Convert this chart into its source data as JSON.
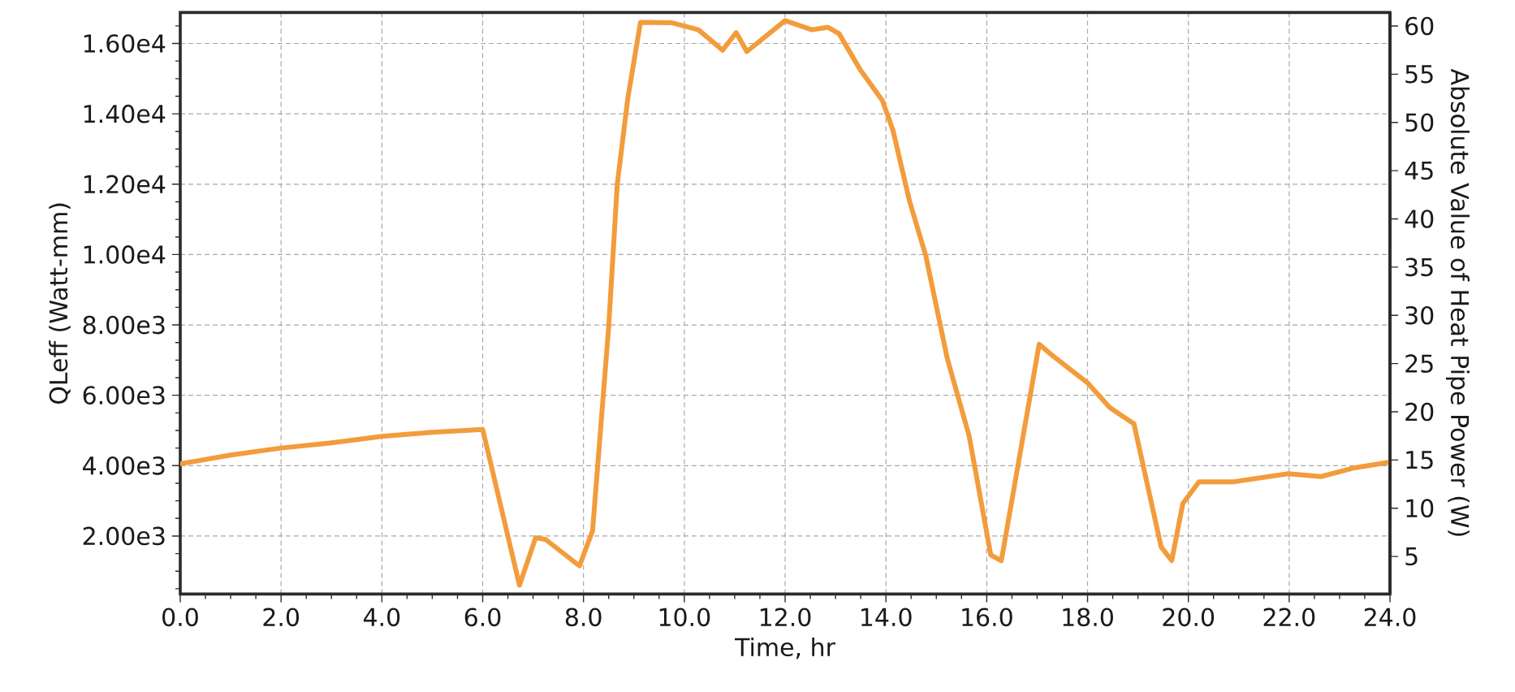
{
  "chart_data": {
    "type": "line",
    "xlabel": "Time, hr",
    "ylabel": "QLeff (Watt-mm)",
    "y2label": "Absolute Value of Heat Pipe Power (W)",
    "x": [
      0,
      1.0,
      2.0,
      3.0,
      4.0,
      5.0,
      6.0,
      6.73,
      7.05,
      7.25,
      7.92,
      8.18,
      8.5,
      8.67,
      8.88,
      9.13,
      9.74,
      10.28,
      10.76,
      11.03,
      11.24,
      12.0,
      12.53,
      12.85,
      13.07,
      13.5,
      13.93,
      14.14,
      14.47,
      14.79,
      15.22,
      15.65,
      16.08,
      16.29,
      17.04,
      17.26,
      18.01,
      18.44,
      18.92,
      19.46,
      19.67,
      19.89,
      20.21,
      20.9,
      21.98,
      22.63,
      23.27,
      24.0
    ],
    "values": [
      4050,
      4300,
      4500,
      4650,
      4830,
      4950,
      5030,
      600,
      1950,
      1900,
      1150,
      2150,
      7950,
      12000,
      14450,
      16600,
      16590,
      16390,
      15810,
      16310,
      15770,
      16650,
      16390,
      16460,
      16280,
      15230,
      14380,
      13530,
      11510,
      9970,
      7030,
      4850,
      1460,
      1300,
      7450,
      7180,
      6340,
      5650,
      5190,
      1690,
      1300,
      2920,
      3540,
      3540,
      3770,
      3690,
      3930,
      4100
    ],
    "color": "#f39c3c",
    "line_style": "solid",
    "grid": true,
    "xlim": [
      0,
      24
    ],
    "ylim": [
      350,
      16880
    ],
    "y2lim": [
      1.1,
      61.4
    ],
    "xticks": [
      {
        "value": 0,
        "label": "0.0"
      },
      {
        "value": 0.5,
        "label": null
      },
      {
        "value": 1,
        "label": null
      },
      {
        "value": 1.5,
        "label": null
      },
      {
        "value": 2,
        "label": "2.0"
      },
      {
        "value": 2.5,
        "label": null
      },
      {
        "value": 3,
        "label": null
      },
      {
        "value": 3.5,
        "label": null
      },
      {
        "value": 4,
        "label": "4.0"
      },
      {
        "value": 4.5,
        "label": null
      },
      {
        "value": 5,
        "label": null
      },
      {
        "value": 5.5,
        "label": null
      },
      {
        "value": 6,
        "label": "6.0"
      },
      {
        "value": 6.5,
        "label": null
      },
      {
        "value": 7,
        "label": null
      },
      {
        "value": 7.5,
        "label": null
      },
      {
        "value": 8,
        "label": "8.0"
      },
      {
        "value": 8.5,
        "label": null
      },
      {
        "value": 9,
        "label": null
      },
      {
        "value": 9.5,
        "label": null
      },
      {
        "value": 10,
        "label": "10.0"
      },
      {
        "value": 10.5,
        "label": null
      },
      {
        "value": 11,
        "label": null
      },
      {
        "value": 11.5,
        "label": null
      },
      {
        "value": 12,
        "label": "12.0"
      },
      {
        "value": 12.5,
        "label": null
      },
      {
        "value": 13,
        "label": null
      },
      {
        "value": 13.5,
        "label": null
      },
      {
        "value": 14,
        "label": "14.0"
      },
      {
        "value": 14.5,
        "label": null
      },
      {
        "value": 15,
        "label": null
      },
      {
        "value": 15.5,
        "label": null
      },
      {
        "value": 16,
        "label": "16.0"
      },
      {
        "value": 16.5,
        "label": null
      },
      {
        "value": 17,
        "label": null
      },
      {
        "value": 17.5,
        "label": null
      },
      {
        "value": 18,
        "label": "18.0"
      },
      {
        "value": 18.5,
        "label": null
      },
      {
        "value": 19,
        "label": null
      },
      {
        "value": 19.5,
        "label": null
      },
      {
        "value": 20,
        "label": "20.0"
      },
      {
        "value": 20.5,
        "label": null
      },
      {
        "value": 21,
        "label": null
      },
      {
        "value": 21.5,
        "label": null
      },
      {
        "value": 22,
        "label": "22.0"
      },
      {
        "value": 22.5,
        "label": null
      },
      {
        "value": 23,
        "label": null
      },
      {
        "value": 23.5,
        "label": null
      },
      {
        "value": 24,
        "label": "24.0"
      }
    ],
    "yticks": [
      {
        "value": 500,
        "label": null
      },
      {
        "value": 1000,
        "label": null
      },
      {
        "value": 1500,
        "label": null
      },
      {
        "value": 2000,
        "label": "2.00e3"
      },
      {
        "value": 2500,
        "label": null
      },
      {
        "value": 3000,
        "label": null
      },
      {
        "value": 3500,
        "label": null
      },
      {
        "value": 4000,
        "label": "4.00e3"
      },
      {
        "value": 4500,
        "label": null
      },
      {
        "value": 5000,
        "label": null
      },
      {
        "value": 5500,
        "label": null
      },
      {
        "value": 6000,
        "label": "6.00e3"
      },
      {
        "value": 6500,
        "label": null
      },
      {
        "value": 7000,
        "label": null
      },
      {
        "value": 7500,
        "label": null
      },
      {
        "value": 8000,
        "label": "8.00e3"
      },
      {
        "value": 8500,
        "label": null
      },
      {
        "value": 9000,
        "label": null
      },
      {
        "value": 9500,
        "label": null
      },
      {
        "value": 10000,
        "label": "1.00e4"
      },
      {
        "value": 10500,
        "label": null
      },
      {
        "value": 11000,
        "label": null
      },
      {
        "value": 11500,
        "label": null
      },
      {
        "value": 12000,
        "label": "1.20e4"
      },
      {
        "value": 12500,
        "label": null
      },
      {
        "value": 13000,
        "label": null
      },
      {
        "value": 13500,
        "label": null
      },
      {
        "value": 14000,
        "label": "1.40e4"
      },
      {
        "value": 14500,
        "label": null
      },
      {
        "value": 15000,
        "label": null
      },
      {
        "value": 15500,
        "label": null
      },
      {
        "value": 16000,
        "label": "1.60e4"
      },
      {
        "value": 16500,
        "label": null
      }
    ],
    "y2ticks": [
      5,
      10,
      15,
      20,
      25,
      30,
      35,
      40,
      45,
      50,
      55,
      60
    ]
  }
}
